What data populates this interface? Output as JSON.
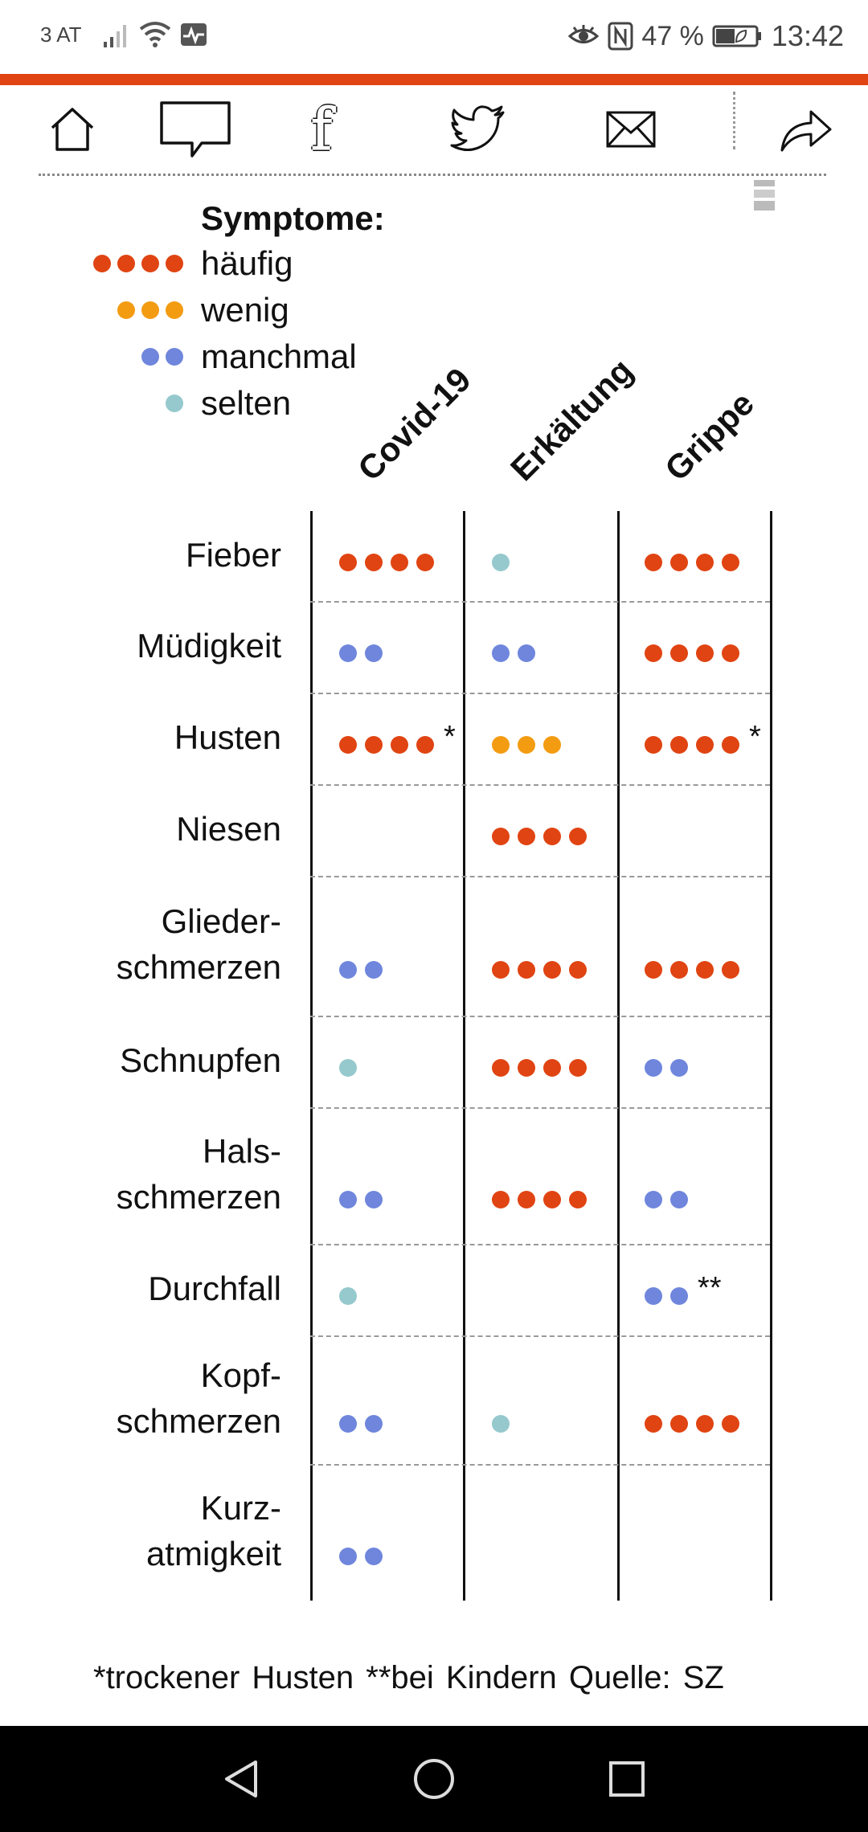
{
  "status_bar": {
    "carrier": "3 AT",
    "battery_percent": "47 %",
    "battery_level": 0.47,
    "time": "13:42",
    "icons": [
      "signal-icon",
      "wifi-icon",
      "activity-icon",
      "eye-icon",
      "nfc-icon",
      "battery-icon"
    ]
  },
  "toolbar": {
    "buttons": [
      "home-icon",
      "comment-icon",
      "facebook-icon",
      "twitter-icon",
      "mail-icon",
      "share-icon"
    ],
    "facebook_glyph": "f"
  },
  "colors": {
    "accent": "#e04412",
    "haeufig": "#e04412",
    "wenig": "#f39c12",
    "manchmal": "#6f86dc",
    "selten": "#95c9cd"
  },
  "legend": {
    "title": "Symptome:",
    "items": [
      {
        "label": "häufig",
        "count": 4,
        "color": "#e04412"
      },
      {
        "label": "wenig",
        "count": 3,
        "color": "#f39c12"
      },
      {
        "label": "manchmal",
        "count": 2,
        "color": "#6f86dc"
      },
      {
        "label": "selten",
        "count": 1,
        "color": "#95c9cd"
      }
    ]
  },
  "columns": [
    "Covid-19",
    "Erkältung",
    "Grippe"
  ],
  "rows": [
    {
      "label": "Fieber",
      "lines": [
        "Fieber"
      ],
      "cells": [
        {
          "level": 4
        },
        {
          "level": 1
        },
        {
          "level": 4
        }
      ]
    },
    {
      "label": "Müdigkeit",
      "lines": [
        "Müdigkeit"
      ],
      "cells": [
        {
          "level": 2
        },
        {
          "level": 2
        },
        {
          "level": 4
        }
      ]
    },
    {
      "label": "Husten",
      "lines": [
        "Husten"
      ],
      "cells": [
        {
          "level": 4,
          "mark": "*"
        },
        {
          "level": 3
        },
        {
          "level": 4,
          "mark": "*"
        }
      ]
    },
    {
      "label": "Niesen",
      "lines": [
        "Niesen"
      ],
      "cells": [
        {
          "level": 0
        },
        {
          "level": 4
        },
        {
          "level": 0
        }
      ]
    },
    {
      "label": "Glieder-schmerzen",
      "lines": [
        "Glieder-",
        "schmerzen"
      ],
      "cells": [
        {
          "level": 2
        },
        {
          "level": 4
        },
        {
          "level": 4
        }
      ]
    },
    {
      "label": "Schnupfen",
      "lines": [
        "Schnupfen"
      ],
      "cells": [
        {
          "level": 1
        },
        {
          "level": 4
        },
        {
          "level": 2
        }
      ]
    },
    {
      "label": "Hals-schmerzen",
      "lines": [
        "Hals-",
        "schmerzen"
      ],
      "cells": [
        {
          "level": 2
        },
        {
          "level": 4
        },
        {
          "level": 2
        }
      ]
    },
    {
      "label": "Durchfall",
      "lines": [
        "Durchfall"
      ],
      "cells": [
        {
          "level": 1
        },
        {
          "level": 0
        },
        {
          "level": 2,
          "mark": "**"
        }
      ]
    },
    {
      "label": "Kopf-schmerzen",
      "lines": [
        "Kopf-",
        "schmerzen"
      ],
      "cells": [
        {
          "level": 2
        },
        {
          "level": 1
        },
        {
          "level": 4
        }
      ]
    },
    {
      "label": "Kurz-atmigkeit",
      "lines": [
        "Kurz-",
        "atmigkeit"
      ],
      "cells": [
        {
          "level": 2
        },
        {
          "level": 0
        },
        {
          "level": 0
        }
      ]
    }
  ],
  "footnote": "*trockener Husten  **bei Kindern  Quelle: SZ",
  "navbar": {
    "buttons": [
      "back-icon",
      "home-circle-icon",
      "recents-icon"
    ]
  }
}
